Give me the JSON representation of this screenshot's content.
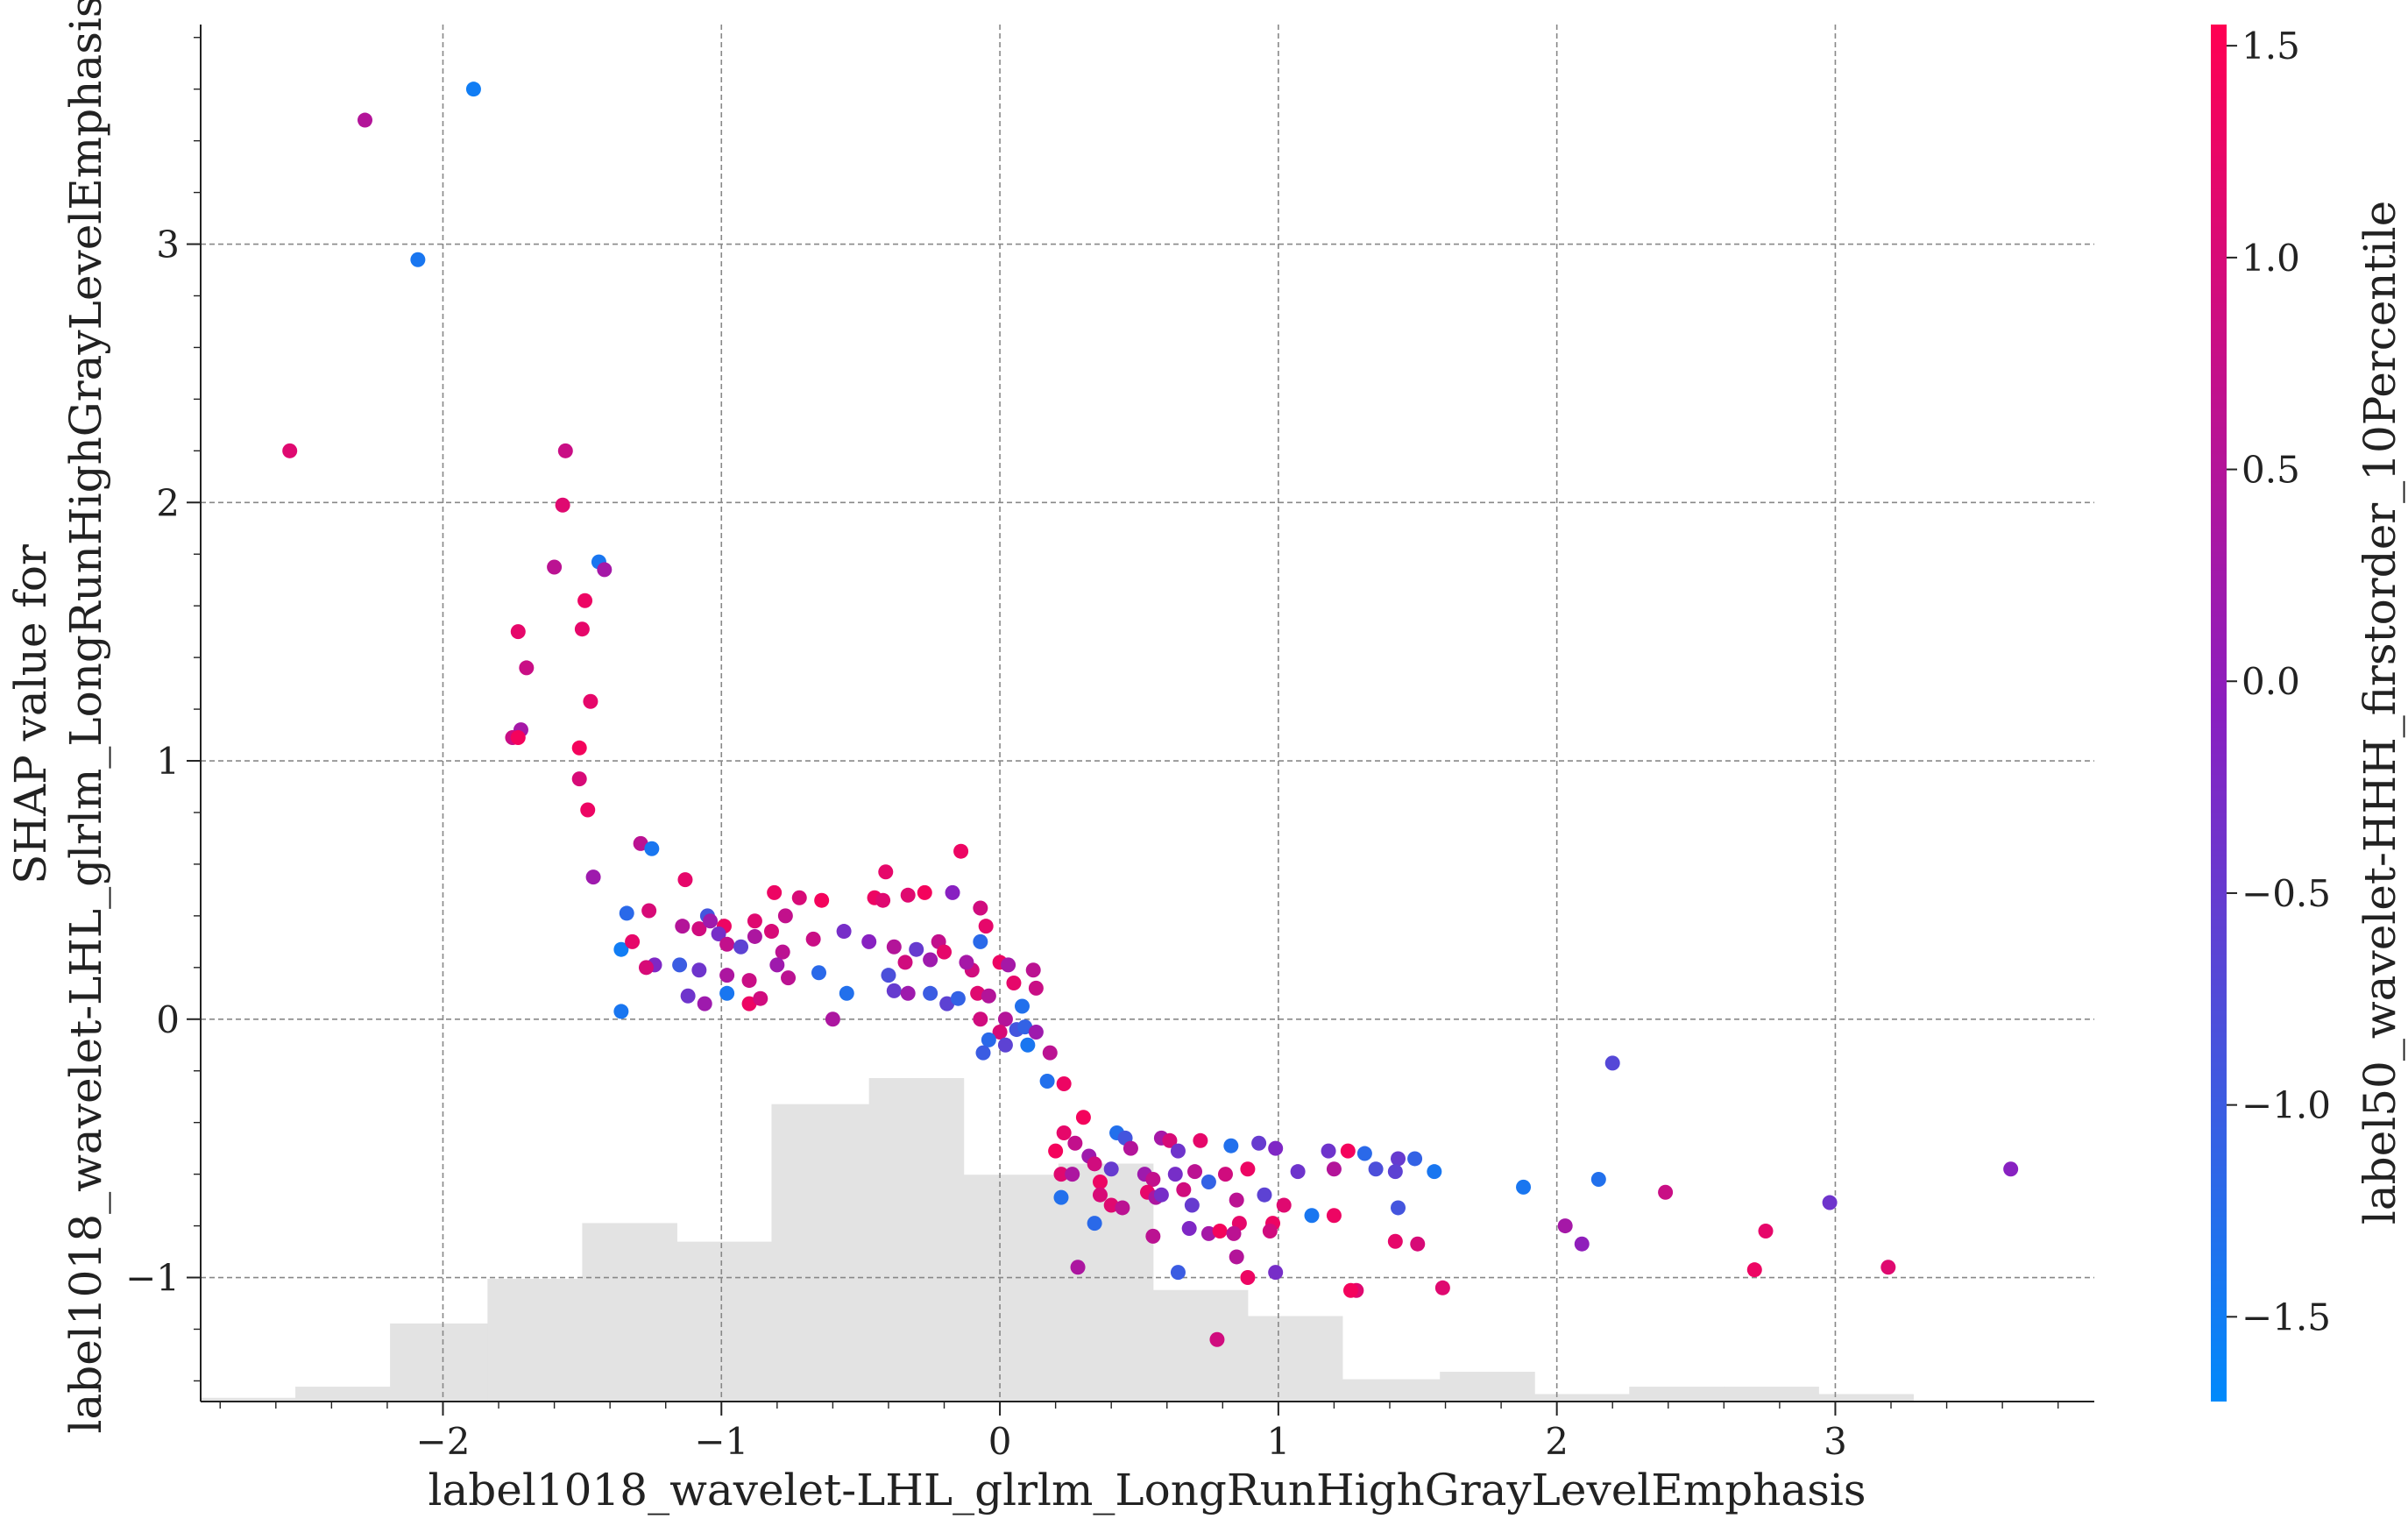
{
  "chart_data": {
    "type": "scatter",
    "xlabel": "label1018_wavelet-LHL_glrlm_LongRunHighGrayLevelEmphasis",
    "ylabel_line1": "SHAP value for",
    "ylabel_line2": "label1018_wavelet-LHL_glrlm_LongRunHighGrayLevelEmphasis",
    "colorbar_label": "label50_wavelet-HHH_firstorder_10Percentile",
    "xlim": [
      -2.87,
      3.93
    ],
    "ylim": [
      -1.48,
      3.85
    ],
    "x_ticks": [
      -2,
      -1,
      0,
      1,
      2,
      3
    ],
    "x_tick_labels": [
      "−2",
      "−1",
      "0",
      "1",
      "2",
      "3"
    ],
    "y_ticks": [
      -1,
      0,
      1,
      2,
      3
    ],
    "y_tick_labels": [
      "−1",
      "0",
      "1",
      "2",
      "3"
    ],
    "color_range": [
      -1.7,
      1.55
    ],
    "color_ticks": [
      -1.5,
      -1.0,
      -0.5,
      0.0,
      0.5,
      1.0,
      1.5
    ],
    "color_tick_labels": [
      "−1.5",
      "−1.0",
      "−0.5",
      "0.0",
      "0.5",
      "1.0",
      "1.5"
    ],
    "grid": true,
    "colors": {
      "low": "#008afb",
      "mid": "#8a1fc0",
      "high": "#ff0052",
      "histogram": "#e3e3e3"
    },
    "histogram": {
      "bin_edges": [
        -2.87,
        -2.53,
        -2.19,
        -1.84,
        -1.5,
        -1.16,
        -0.82,
        -0.47,
        -0.13,
        0.21,
        0.55,
        0.89,
        1.23,
        1.58,
        1.92,
        2.26,
        2.6,
        2.94,
        3.28,
        3.62,
        3.93
      ],
      "values": [
        0.01,
        0.04,
        0.21,
        0.33,
        0.48,
        0.43,
        0.8,
        0.87,
        0.61,
        0.64,
        0.3,
        0.23,
        0.06,
        0.08,
        0.02,
        0.04,
        0.04,
        0.02,
        0.0,
        0.0
      ],
      "max_height_fraction": 0.27
    },
    "points": [
      {
        "x": -2.28,
        "y": 3.48,
        "c": 0.5
      },
      {
        "x": -1.89,
        "y": 3.6,
        "c": -1.5
      },
      {
        "x": -2.09,
        "y": 2.94,
        "c": -1.4
      },
      {
        "x": -2.55,
        "y": 2.2,
        "c": 1.1
      },
      {
        "x": -1.56,
        "y": 2.2,
        "c": 0.8
      },
      {
        "x": -1.57,
        "y": 1.99,
        "c": 1.1
      },
      {
        "x": -1.44,
        "y": 1.77,
        "c": -1.4
      },
      {
        "x": -1.6,
        "y": 1.75,
        "c": 0.6
      },
      {
        "x": -1.42,
        "y": 1.74,
        "c": 0.3
      },
      {
        "x": -1.49,
        "y": 1.62,
        "c": 1.3
      },
      {
        "x": -1.73,
        "y": 1.5,
        "c": 1.2
      },
      {
        "x": -1.5,
        "y": 1.51,
        "c": 1.2
      },
      {
        "x": -1.7,
        "y": 1.36,
        "c": 0.8
      },
      {
        "x": -1.47,
        "y": 1.23,
        "c": 1.2
      },
      {
        "x": -1.72,
        "y": 1.12,
        "c": 0.3
      },
      {
        "x": -1.75,
        "y": 1.09,
        "c": 0.8
      },
      {
        "x": -1.73,
        "y": 1.09,
        "c": 1.4
      },
      {
        "x": -1.51,
        "y": 1.05,
        "c": 1.4
      },
      {
        "x": -1.51,
        "y": 0.93,
        "c": 1.0
      },
      {
        "x": -1.48,
        "y": 0.81,
        "c": 1.3
      },
      {
        "x": -1.29,
        "y": 0.68,
        "c": 0.6
      },
      {
        "x": -1.25,
        "y": 0.66,
        "c": -1.4
      },
      {
        "x": -1.46,
        "y": 0.55,
        "c": 0.2
      },
      {
        "x": -1.13,
        "y": 0.54,
        "c": 1.2
      },
      {
        "x": -1.34,
        "y": 0.41,
        "c": -1.2
      },
      {
        "x": -1.26,
        "y": 0.42,
        "c": 1.0
      },
      {
        "x": -1.05,
        "y": 0.4,
        "c": -0.9
      },
      {
        "x": -0.99,
        "y": 0.36,
        "c": 1.3
      },
      {
        "x": -0.88,
        "y": 0.38,
        "c": 1.1
      },
      {
        "x": -0.81,
        "y": 0.49,
        "c": 1.3
      },
      {
        "x": -0.72,
        "y": 0.47,
        "c": 1.0
      },
      {
        "x": -0.64,
        "y": 0.46,
        "c": 1.4
      },
      {
        "x": -0.77,
        "y": 0.4,
        "c": 0.7
      },
      {
        "x": -0.56,
        "y": 0.34,
        "c": -0.3
      },
      {
        "x": -0.45,
        "y": 0.47,
        "c": 1.3
      },
      {
        "x": -0.41,
        "y": 0.57,
        "c": 1.2
      },
      {
        "x": -0.42,
        "y": 0.46,
        "c": 1.1
      },
      {
        "x": -0.33,
        "y": 0.48,
        "c": 1.1
      },
      {
        "x": -0.27,
        "y": 0.49,
        "c": 1.4
      },
      {
        "x": -0.17,
        "y": 0.49,
        "c": -0.1
      },
      {
        "x": -0.14,
        "y": 0.65,
        "c": 1.3
      },
      {
        "x": -0.07,
        "y": 0.43,
        "c": 0.9
      },
      {
        "x": -0.05,
        "y": 0.36,
        "c": 1.2
      },
      {
        "x": -0.07,
        "y": 0.3,
        "c": -1.2
      },
      {
        "x": -1.36,
        "y": 0.27,
        "c": -1.5
      },
      {
        "x": -1.32,
        "y": 0.3,
        "c": 1.2
      },
      {
        "x": -1.24,
        "y": 0.21,
        "c": -0.2
      },
      {
        "x": -1.14,
        "y": 0.36,
        "c": 0.5
      },
      {
        "x": -1.08,
        "y": 0.35,
        "c": 0.9
      },
      {
        "x": -1.04,
        "y": 0.38,
        "c": 0.2
      },
      {
        "x": -1.01,
        "y": 0.33,
        "c": -0.3
      },
      {
        "x": -0.98,
        "y": 0.29,
        "c": 0.7
      },
      {
        "x": -0.93,
        "y": 0.28,
        "c": -0.6
      },
      {
        "x": -0.88,
        "y": 0.32,
        "c": 0.4
      },
      {
        "x": -0.82,
        "y": 0.34,
        "c": 1.0
      },
      {
        "x": -0.78,
        "y": 0.26,
        "c": 0.6
      },
      {
        "x": -0.67,
        "y": 0.31,
        "c": 0.8
      },
      {
        "x": -0.47,
        "y": 0.3,
        "c": -0.1
      },
      {
        "x": -0.38,
        "y": 0.28,
        "c": 0.5
      },
      {
        "x": -0.34,
        "y": 0.22,
        "c": 0.9
      },
      {
        "x": -0.3,
        "y": 0.27,
        "c": -0.5
      },
      {
        "x": -0.25,
        "y": 0.23,
        "c": 0.2
      },
      {
        "x": -0.22,
        "y": 0.3,
        "c": 0.7
      },
      {
        "x": -0.2,
        "y": 0.26,
        "c": 1.2
      },
      {
        "x": -0.1,
        "y": 0.19,
        "c": 0.9
      },
      {
        "x": -0.12,
        "y": 0.22,
        "c": 0.3
      },
      {
        "x": -1.27,
        "y": 0.2,
        "c": 1.0
      },
      {
        "x": -1.15,
        "y": 0.21,
        "c": -1.0
      },
      {
        "x": -1.08,
        "y": 0.19,
        "c": -0.4
      },
      {
        "x": -0.98,
        "y": 0.17,
        "c": 0.4
      },
      {
        "x": -0.9,
        "y": 0.15,
        "c": 0.8
      },
      {
        "x": -0.8,
        "y": 0.21,
        "c": 0.2
      },
      {
        "x": -0.76,
        "y": 0.16,
        "c": 0.6
      },
      {
        "x": -0.65,
        "y": 0.18,
        "c": -1.2
      },
      {
        "x": -0.55,
        "y": 0.1,
        "c": -1.3
      },
      {
        "x": -0.4,
        "y": 0.17,
        "c": -0.8
      },
      {
        "x": -0.38,
        "y": 0.11,
        "c": -0.5
      },
      {
        "x": -0.33,
        "y": 0.1,
        "c": 0.2
      },
      {
        "x": -0.25,
        "y": 0.1,
        "c": -1.0
      },
      {
        "x": -0.19,
        "y": 0.06,
        "c": -0.6
      },
      {
        "x": -0.15,
        "y": 0.08,
        "c": -1.1
      },
      {
        "x": -0.08,
        "y": 0.1,
        "c": 1.1
      },
      {
        "x": -0.04,
        "y": 0.09,
        "c": 0.5
      },
      {
        "x": -1.36,
        "y": 0.03,
        "c": -1.4
      },
      {
        "x": -1.12,
        "y": 0.09,
        "c": -0.4
      },
      {
        "x": -1.06,
        "y": 0.06,
        "c": 0.2
      },
      {
        "x": -0.98,
        "y": 0.1,
        "c": -1.4
      },
      {
        "x": -0.9,
        "y": 0.06,
        "c": 1.3
      },
      {
        "x": -0.86,
        "y": 0.08,
        "c": 0.9
      },
      {
        "x": -0.6,
        "y": 0.0,
        "c": 0.4
      },
      {
        "x": -0.07,
        "y": 0.0,
        "c": 0.9
      },
      {
        "x": 0.0,
        "y": 0.22,
        "c": 1.3
      },
      {
        "x": 0.03,
        "y": 0.21,
        "c": 0.3
      },
      {
        "x": 0.12,
        "y": 0.19,
        "c": 0.6
      },
      {
        "x": 0.05,
        "y": 0.14,
        "c": 1.2
      },
      {
        "x": 0.13,
        "y": 0.12,
        "c": 0.8
      },
      {
        "x": 0.08,
        "y": 0.05,
        "c": -1.3
      },
      {
        "x": 0.02,
        "y": 0.0,
        "c": 0.5
      },
      {
        "x": 0.06,
        "y": -0.04,
        "c": -0.9
      },
      {
        "x": 0.09,
        "y": -0.03,
        "c": -1.1
      },
      {
        "x": 0.0,
        "y": -0.05,
        "c": 1.0
      },
      {
        "x": -0.04,
        "y": -0.08,
        "c": -1.2
      },
      {
        "x": -0.06,
        "y": -0.13,
        "c": -1.0
      },
      {
        "x": 0.02,
        "y": -0.1,
        "c": -0.6
      },
      {
        "x": 0.1,
        "y": -0.1,
        "c": -1.4
      },
      {
        "x": 0.13,
        "y": -0.05,
        "c": 0.2
      },
      {
        "x": 0.18,
        "y": -0.13,
        "c": 0.6
      },
      {
        "x": 0.17,
        "y": -0.24,
        "c": -1.3
      },
      {
        "x": 0.23,
        "y": -0.25,
        "c": 1.3
      },
      {
        "x": 0.3,
        "y": -0.38,
        "c": 1.4
      },
      {
        "x": 0.23,
        "y": -0.44,
        "c": 1.2
      },
      {
        "x": 0.2,
        "y": -0.51,
        "c": 1.4
      },
      {
        "x": 0.27,
        "y": -0.48,
        "c": 0.7
      },
      {
        "x": 0.32,
        "y": -0.53,
        "c": 0.2
      },
      {
        "x": 0.34,
        "y": -0.56,
        "c": 0.9
      },
      {
        "x": 0.42,
        "y": -0.44,
        "c": -1.3
      },
      {
        "x": 0.45,
        "y": -0.46,
        "c": -0.9
      },
      {
        "x": 0.47,
        "y": -0.5,
        "c": 0.5
      },
      {
        "x": 0.58,
        "y": -0.46,
        "c": 0.3
      },
      {
        "x": 0.61,
        "y": -0.47,
        "c": 1.0
      },
      {
        "x": 0.64,
        "y": -0.51,
        "c": -0.4
      },
      {
        "x": 0.72,
        "y": -0.47,
        "c": 1.2
      },
      {
        "x": 0.83,
        "y": -0.49,
        "c": -1.3
      },
      {
        "x": 0.93,
        "y": -0.48,
        "c": -0.5
      },
      {
        "x": 0.99,
        "y": -0.5,
        "c": -0.2
      },
      {
        "x": 1.18,
        "y": -0.51,
        "c": -0.4
      },
      {
        "x": 1.25,
        "y": -0.51,
        "c": 1.4
      },
      {
        "x": 1.31,
        "y": -0.52,
        "c": -1.2
      },
      {
        "x": 1.43,
        "y": -0.54,
        "c": -0.5
      },
      {
        "x": 1.49,
        "y": -0.54,
        "c": -1.1
      },
      {
        "x": 1.56,
        "y": -0.59,
        "c": -1.4
      },
      {
        "x": 0.22,
        "y": -0.6,
        "c": 1.1
      },
      {
        "x": 0.26,
        "y": -0.6,
        "c": 0.4
      },
      {
        "x": 0.36,
        "y": -0.63,
        "c": 1.3
      },
      {
        "x": 0.4,
        "y": -0.58,
        "c": -0.5
      },
      {
        "x": 0.52,
        "y": -0.6,
        "c": 0.2
      },
      {
        "x": 0.55,
        "y": -0.62,
        "c": 0.7
      },
      {
        "x": 0.63,
        "y": -0.6,
        "c": -0.3
      },
      {
        "x": 0.7,
        "y": -0.59,
        "c": 0.6
      },
      {
        "x": 0.75,
        "y": -0.63,
        "c": -1.1
      },
      {
        "x": 0.81,
        "y": -0.6,
        "c": 0.9
      },
      {
        "x": 0.89,
        "y": -0.58,
        "c": 1.3
      },
      {
        "x": 1.07,
        "y": -0.59,
        "c": -0.4
      },
      {
        "x": 1.2,
        "y": -0.58,
        "c": 0.5
      },
      {
        "x": 1.35,
        "y": -0.58,
        "c": -0.8
      },
      {
        "x": 1.42,
        "y": -0.59,
        "c": -0.6
      },
      {
        "x": 0.22,
        "y": -0.69,
        "c": -1.3
      },
      {
        "x": 0.36,
        "y": -0.68,
        "c": 1.0
      },
      {
        "x": 0.4,
        "y": -0.72,
        "c": 1.1
      },
      {
        "x": 0.44,
        "y": -0.73,
        "c": 0.6
      },
      {
        "x": 0.53,
        "y": -0.67,
        "c": 1.2
      },
      {
        "x": 0.56,
        "y": -0.69,
        "c": 0.4
      },
      {
        "x": 0.58,
        "y": -0.68,
        "c": -0.3
      },
      {
        "x": 0.66,
        "y": -0.66,
        "c": 0.9
      },
      {
        "x": 0.69,
        "y": -0.72,
        "c": -0.5
      },
      {
        "x": 0.85,
        "y": -0.7,
        "c": 0.6
      },
      {
        "x": 0.95,
        "y": -0.68,
        "c": -0.6
      },
      {
        "x": 1.02,
        "y": -0.72,
        "c": 1.1
      },
      {
        "x": 1.12,
        "y": -0.76,
        "c": -1.4
      },
      {
        "x": 1.2,
        "y": -0.76,
        "c": 1.3
      },
      {
        "x": 1.43,
        "y": -0.73,
        "c": -0.9
      },
      {
        "x": 0.34,
        "y": -0.79,
        "c": -1.2
      },
      {
        "x": 0.55,
        "y": -0.84,
        "c": 0.6
      },
      {
        "x": 0.68,
        "y": -0.81,
        "c": -0.2
      },
      {
        "x": 0.75,
        "y": -0.83,
        "c": 0.3
      },
      {
        "x": 0.79,
        "y": -0.82,
        "c": 1.4
      },
      {
        "x": 0.86,
        "y": -0.79,
        "c": 1.2
      },
      {
        "x": 0.84,
        "y": -0.83,
        "c": 0.6
      },
      {
        "x": 0.98,
        "y": -0.79,
        "c": 1.3
      },
      {
        "x": 0.97,
        "y": -0.82,
        "c": 0.9
      },
      {
        "x": 1.42,
        "y": -0.86,
        "c": 1.2
      },
      {
        "x": 1.5,
        "y": -0.87,
        "c": 1.0
      },
      {
        "x": 0.28,
        "y": -0.96,
        "c": 0.4
      },
      {
        "x": 0.64,
        "y": -0.98,
        "c": -1.0
      },
      {
        "x": 0.85,
        "y": -0.92,
        "c": 0.5
      },
      {
        "x": 0.89,
        "y": -1.0,
        "c": 1.3
      },
      {
        "x": 0.99,
        "y": -0.98,
        "c": -0.3
      },
      {
        "x": 1.28,
        "y": -1.05,
        "c": 1.1
      },
      {
        "x": 1.26,
        "y": -1.05,
        "c": 1.4
      },
      {
        "x": 1.59,
        "y": -1.04,
        "c": 1.1
      },
      {
        "x": 0.78,
        "y": -1.24,
        "c": 0.9
      },
      {
        "x": 1.88,
        "y": -0.65,
        "c": -1.4
      },
      {
        "x": 2.15,
        "y": -0.62,
        "c": -1.3
      },
      {
        "x": 2.2,
        "y": -0.17,
        "c": -0.7
      },
      {
        "x": 2.39,
        "y": -0.67,
        "c": 0.8
      },
      {
        "x": 2.03,
        "y": -0.8,
        "c": 0.3
      },
      {
        "x": 2.09,
        "y": -0.87,
        "c": 0.0
      },
      {
        "x": 2.75,
        "y": -0.82,
        "c": 1.2
      },
      {
        "x": 2.71,
        "y": -0.97,
        "c": 1.3
      },
      {
        "x": 2.98,
        "y": -0.71,
        "c": -0.4
      },
      {
        "x": 3.19,
        "y": -0.96,
        "c": 1.1
      },
      {
        "x": 3.63,
        "y": -0.58,
        "c": -0.1
      }
    ]
  }
}
